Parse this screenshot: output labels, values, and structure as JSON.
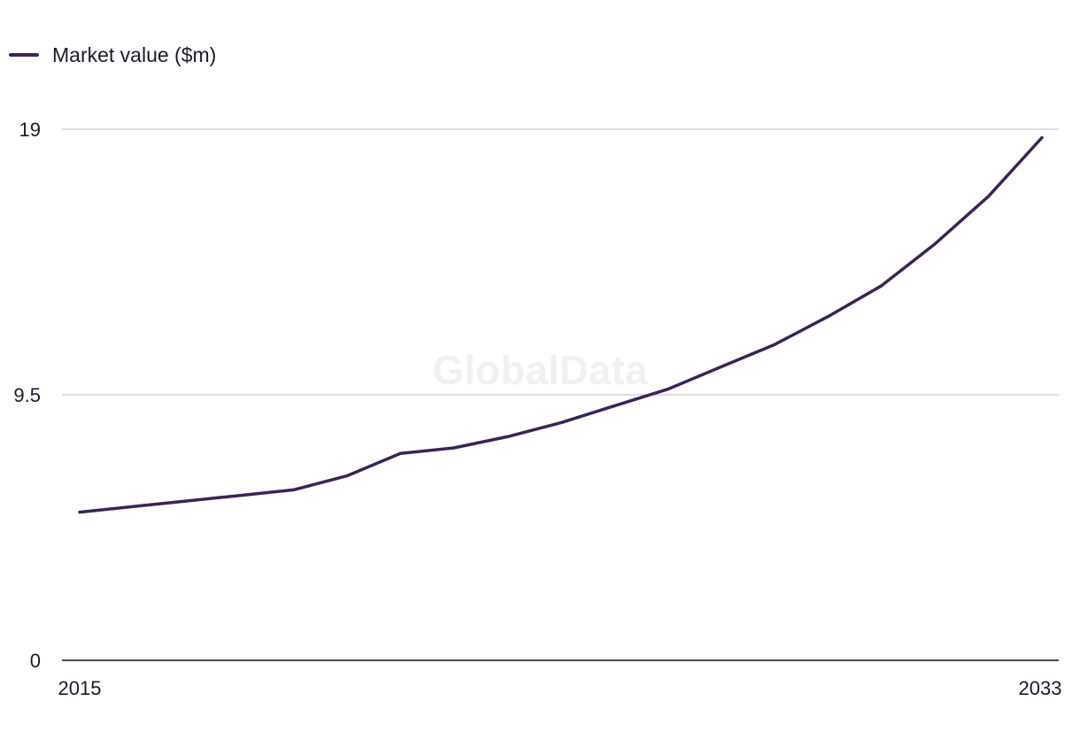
{
  "chart_data": {
    "type": "line",
    "title": "",
    "xlabel": "",
    "ylabel": "",
    "x_tick_labels": [
      "2015",
      "2033"
    ],
    "y_tick_labels": [
      "0",
      "9.5",
      "19"
    ],
    "xlim": [
      2015,
      2033
    ],
    "ylim": [
      0,
      19
    ],
    "grid": true,
    "legend_placement": "top-left",
    "watermark": "GlobalData",
    "series": [
      {
        "name": "Market value ($m)",
        "color": "#3a2456",
        "x": [
          2015,
          2016,
          2017,
          2018,
          2019,
          2020,
          2021,
          2022,
          2023,
          2024,
          2025,
          2026,
          2027,
          2028,
          2029,
          2030,
          2031,
          2032,
          2033
        ],
        "values": [
          5.3,
          5.5,
          5.7,
          5.9,
          6.1,
          6.6,
          7.4,
          7.6,
          8.0,
          8.5,
          9.1,
          9.7,
          10.5,
          11.3,
          12.3,
          13.4,
          14.9,
          16.6,
          18.7
        ]
      }
    ]
  },
  "colors": {
    "line": "#3a2456",
    "grid": "#d4d4d8",
    "axis": "#111111",
    "text": "#1a1a2e"
  }
}
